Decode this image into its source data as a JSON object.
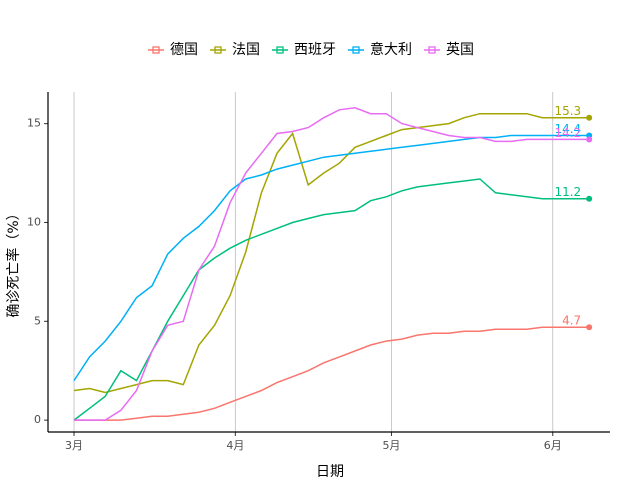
{
  "chart_data": {
    "type": "line",
    "x_label": "日期",
    "y_label": "确诊死亡率（%）",
    "x": [
      0,
      3,
      6,
      9,
      12,
      15,
      18,
      21,
      24,
      27,
      30,
      33,
      36,
      39,
      42,
      45,
      48,
      51,
      54,
      57,
      60,
      63,
      66,
      69,
      72,
      75,
      78,
      81,
      84,
      87,
      90,
      93,
      96,
      99
    ],
    "xlim": [
      -5,
      103
    ],
    "xticks": [
      {
        "value": 0,
        "label": "3月"
      },
      {
        "value": 31,
        "label": "4月"
      },
      {
        "value": 61,
        "label": "5月"
      },
      {
        "value": 92,
        "label": "6月"
      }
    ],
    "ylim": [
      -0.6,
      16.6
    ],
    "yticks": [
      0,
      5,
      10,
      15
    ],
    "grid": true,
    "legend": "top",
    "end_labels": true,
    "series": [
      {
        "name": "德国",
        "color": "#F8766D",
        "values": [
          0,
          0,
          0,
          0,
          0.1,
          0.2,
          0.2,
          0.3,
          0.4,
          0.6,
          0.9,
          1.2,
          1.5,
          1.9,
          2.2,
          2.5,
          2.9,
          3.2,
          3.5,
          3.8,
          4.0,
          4.1,
          4.3,
          4.4,
          4.4,
          4.5,
          4.5,
          4.6,
          4.6,
          4.6,
          4.7,
          4.7,
          4.7,
          4.7
        ]
      },
      {
        "name": "法国",
        "color": "#A3A500",
        "values": [
          1.5,
          1.6,
          1.4,
          1.6,
          1.8,
          2.0,
          2.0,
          1.8,
          3.8,
          4.8,
          6.3,
          8.5,
          11.5,
          13.5,
          14.5,
          11.9,
          12.5,
          13.0,
          13.8,
          14.1,
          14.4,
          14.7,
          14.8,
          14.9,
          15.0,
          15.3,
          15.5,
          15.5,
          15.5,
          15.5,
          15.3,
          15.3,
          15.3,
          15.3
        ]
      },
      {
        "name": "西班牙",
        "color": "#00BF7D",
        "values": [
          0,
          0.6,
          1.2,
          2.5,
          2.0,
          3.5,
          5.0,
          6.3,
          7.6,
          8.2,
          8.7,
          9.1,
          9.4,
          9.7,
          10.0,
          10.2,
          10.4,
          10.5,
          10.6,
          11.1,
          11.3,
          11.6,
          11.8,
          11.9,
          12.0,
          12.1,
          12.2,
          11.5,
          11.4,
          11.3,
          11.2,
          11.2,
          11.2,
          11.2
        ]
      },
      {
        "name": "意大利",
        "color": "#00B0F6",
        "values": [
          2.0,
          3.2,
          4.0,
          5.0,
          6.2,
          6.8,
          8.4,
          9.2,
          9.8,
          10.6,
          11.6,
          12.2,
          12.4,
          12.7,
          12.9,
          13.1,
          13.3,
          13.4,
          13.5,
          13.6,
          13.7,
          13.8,
          13.9,
          14.0,
          14.1,
          14.2,
          14.3,
          14.3,
          14.4,
          14.4,
          14.4,
          14.4,
          14.4,
          14.4
        ]
      },
      {
        "name": "英国",
        "color": "#E76BF3",
        "values": [
          0,
          0,
          0,
          0.5,
          1.5,
          3.5,
          4.8,
          5.0,
          7.6,
          8.8,
          11.0,
          12.5,
          13.5,
          14.5,
          14.6,
          14.8,
          15.3,
          15.7,
          15.8,
          15.5,
          15.5,
          15.0,
          14.8,
          14.6,
          14.4,
          14.3,
          14.3,
          14.1,
          14.1,
          14.2,
          14.2,
          14.2,
          14.2,
          14.2
        ]
      }
    ]
  }
}
